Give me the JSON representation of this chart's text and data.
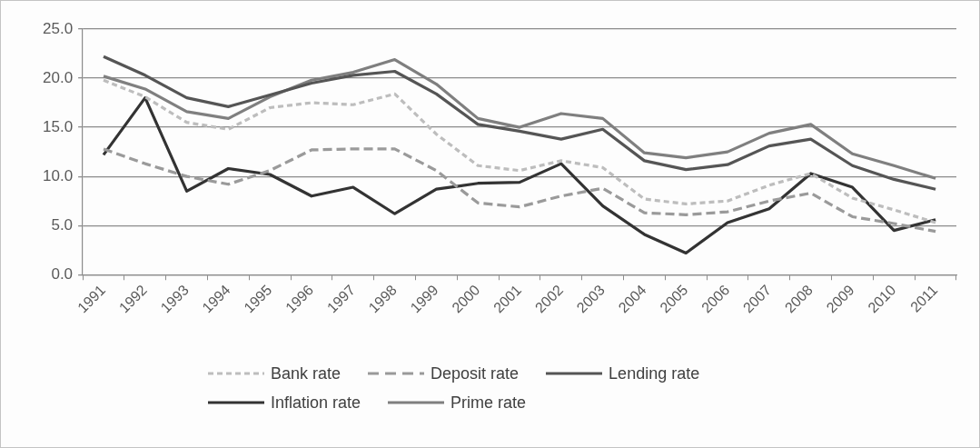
{
  "chart_data": {
    "type": "line",
    "categories": [
      "1991",
      "1992",
      "1993",
      "1994",
      "1995",
      "1996",
      "1997",
      "1998",
      "1999",
      "2000",
      "2001",
      "2002",
      "2003",
      "2004",
      "2005",
      "2006",
      "2007",
      "2008",
      "2009",
      "2010",
      "2011"
    ],
    "series": [
      {
        "name": "Bank rate",
        "color": "#bdbdbd",
        "line_style": "dotted",
        "values": [
          19.8,
          18.1,
          15.5,
          14.8,
          17.0,
          17.5,
          17.3,
          18.4,
          14.3,
          11.1,
          10.6,
          11.6,
          10.9,
          7.7,
          7.2,
          7.5,
          9.1,
          10.3,
          7.8,
          6.6,
          5.3
        ]
      },
      {
        "name": "Deposit rate",
        "color": "#9a9a9a",
        "line_style": "dashed",
        "values": [
          12.8,
          11.3,
          10.0,
          9.2,
          10.6,
          12.7,
          12.8,
          12.8,
          10.6,
          7.3,
          6.9,
          8.0,
          8.8,
          6.3,
          6.1,
          6.4,
          7.5,
          8.3,
          5.9,
          5.2,
          4.4
        ]
      },
      {
        "name": "Lending rate",
        "color": "#555555",
        "line_style": "solid",
        "values": [
          22.2,
          20.3,
          18.0,
          17.1,
          18.3,
          19.5,
          20.3,
          20.7,
          18.4,
          15.3,
          14.6,
          13.8,
          14.8,
          11.6,
          10.7,
          11.2,
          13.1,
          13.8,
          11.1,
          9.7,
          8.7
        ]
      },
      {
        "name": "Inflation rate",
        "color": "#333333",
        "line_style": "solid",
        "values": [
          12.2,
          18.0,
          8.5,
          10.8,
          10.2,
          8.0,
          8.9,
          6.2,
          8.7,
          9.3,
          9.4,
          11.3,
          7.0,
          4.1,
          2.2,
          5.3,
          6.7,
          10.3,
          8.9,
          4.5,
          5.6
        ]
      },
      {
        "name": "Prime rate",
        "color": "#7f7f7f",
        "line_style": "solid",
        "values": [
          20.2,
          18.9,
          16.6,
          15.9,
          18.1,
          19.8,
          20.6,
          21.9,
          19.4,
          15.9,
          15.0,
          16.4,
          15.9,
          12.4,
          11.9,
          12.5,
          14.4,
          15.3,
          12.3,
          11.1,
          9.8
        ]
      }
    ],
    "ylim": [
      0,
      25
    ],
    "yticks": [
      {
        "value": 0,
        "label": "0.0"
      },
      {
        "value": 5,
        "label": "5.0"
      },
      {
        "value": 10,
        "label": "10.0"
      },
      {
        "value": 15,
        "label": "15.0"
      },
      {
        "value": 20,
        "label": "20.0"
      },
      {
        "value": 25,
        "label": "25.0"
      }
    ],
    "grid": "y",
    "legend": "bottom",
    "marker": "none"
  }
}
